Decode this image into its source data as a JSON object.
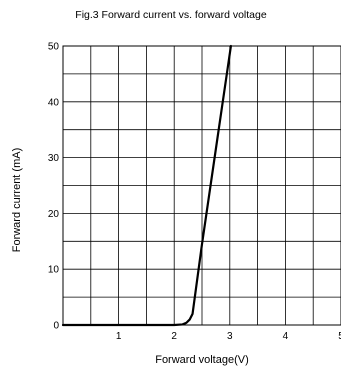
{
  "chart_data": {
    "type": "line",
    "title": "Fig.3 Forward current vs. forward voltage",
    "xlabel": "Forward voltage(V)",
    "ylabel": "Forward current (mA)",
    "xlim": [
      0,
      5
    ],
    "ylim": [
      0,
      50
    ],
    "xticks": [
      1,
      2,
      3,
      4,
      5
    ],
    "yticks": [
      0,
      10,
      20,
      30,
      40,
      50
    ],
    "grid": true,
    "series": [
      {
        "x": [
          0,
          0.5,
          1.0,
          1.5,
          2.0,
          2.15,
          2.22,
          2.28,
          2.33,
          2.5,
          2.8,
          3.02
        ],
        "y": [
          0,
          0,
          0,
          0,
          0,
          0.1,
          0.4,
          1.0,
          2.0,
          14.5,
          35,
          50
        ]
      }
    ]
  }
}
